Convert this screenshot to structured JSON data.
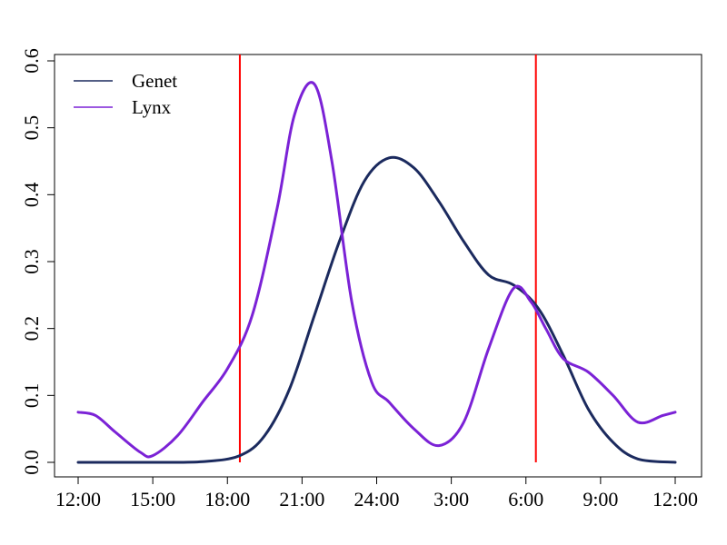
{
  "chart_data": {
    "type": "line",
    "x_unit": "hours since 12:00",
    "xlim": [
      0,
      24
    ],
    "ylim": [
      0,
      0.6
    ],
    "x_ticks": [
      {
        "x": 0,
        "label": "12:00"
      },
      {
        "x": 3,
        "label": "15:00"
      },
      {
        "x": 6,
        "label": "18:00"
      },
      {
        "x": 9,
        "label": "21:00"
      },
      {
        "x": 12,
        "label": "24:00"
      },
      {
        "x": 15,
        "label": "3:00"
      },
      {
        "x": 18,
        "label": "6:00"
      },
      {
        "x": 21,
        "label": "9:00"
      },
      {
        "x": 24,
        "label": "12:00"
      }
    ],
    "y_ticks": [
      {
        "y": 0,
        "label": "0.0"
      },
      {
        "y": 0.1,
        "label": "0.1"
      },
      {
        "y": 0.2,
        "label": "0.2"
      },
      {
        "y": 0.3,
        "label": "0.3"
      },
      {
        "y": 0.4,
        "label": "0.4"
      },
      {
        "y": 0.5,
        "label": "0.5"
      },
      {
        "y": 0.6,
        "label": "0.6"
      }
    ],
    "legend_position": "top-left",
    "series": [
      {
        "name": "Genet",
        "color": "#1b2a5e",
        "x": [
          0,
          3,
          5,
          6.5,
          7.5,
          8.5,
          9.5,
          10.5,
          11.5,
          12.5,
          13.5,
          14.5,
          15.5,
          16.5,
          17.5,
          18.5,
          19.5,
          20.5,
          21.5,
          22.5,
          24
        ],
        "y": [
          0.0,
          0.0,
          0.001,
          0.01,
          0.04,
          0.11,
          0.22,
          0.33,
          0.42,
          0.455,
          0.44,
          0.39,
          0.33,
          0.28,
          0.265,
          0.23,
          0.16,
          0.08,
          0.03,
          0.005,
          0.0
        ]
      },
      {
        "name": "Lynx",
        "color": "#7b22d6",
        "x": [
          0,
          0.7,
          1.5,
          2.5,
          3,
          4,
          5,
          6,
          7,
          8,
          8.7,
          9.5,
          10.2,
          11,
          11.8,
          12.5,
          13.5,
          14.5,
          15.5,
          16.5,
          17.5,
          18.2,
          18.8,
          19.5,
          20.5,
          21.5,
          22.5,
          23.5,
          24
        ],
        "y": [
          0.075,
          0.07,
          0.045,
          0.015,
          0.01,
          0.04,
          0.09,
          0.14,
          0.22,
          0.38,
          0.52,
          0.565,
          0.45,
          0.24,
          0.12,
          0.09,
          0.05,
          0.025,
          0.06,
          0.17,
          0.26,
          0.24,
          0.2,
          0.155,
          0.135,
          0.1,
          0.06,
          0.07,
          0.075
        ]
      }
    ],
    "reference_lines": [
      {
        "x": 6.5,
        "color": "#ff0000"
      },
      {
        "x": 18.4,
        "color": "#ff0000"
      }
    ]
  }
}
